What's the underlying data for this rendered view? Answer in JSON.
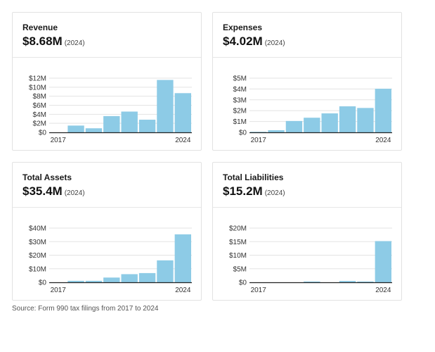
{
  "cards": [
    {
      "title": "Revenue",
      "value": "$8.68M",
      "year": "(2024)"
    },
    {
      "title": "Expenses",
      "value": "$4.02M",
      "year": "(2024)"
    },
    {
      "title": "Total Assets",
      "value": "$35.4M",
      "year": "(2024)"
    },
    {
      "title": "Total Liabilities",
      "value": "$15.2M",
      "year": "(2024)"
    }
  ],
  "source": "Source: Form 990 tax filings from 2017 to 2024",
  "bar_color": "#8dcbe6",
  "chart_data": [
    {
      "type": "bar",
      "title": "Revenue",
      "x": [
        2017,
        2018,
        2019,
        2020,
        2021,
        2022,
        2023,
        2024
      ],
      "values": [
        0,
        1.5,
        0.9,
        3.6,
        4.6,
        2.8,
        11.6,
        8.68
      ],
      "ylim": [
        0,
        12
      ],
      "yticks": [
        0,
        2,
        4,
        6,
        8,
        10,
        12
      ],
      "ytick_labels": [
        "$0",
        "$2M",
        "$4M",
        "$6M",
        "$8M",
        "$10M",
        "$12M"
      ],
      "xtick_labels": {
        "2017": "2017",
        "2024": "2024"
      }
    },
    {
      "type": "bar",
      "title": "Expenses",
      "x": [
        2017,
        2018,
        2019,
        2020,
        2021,
        2022,
        2023,
        2024
      ],
      "values": [
        0.05,
        0.2,
        1.05,
        1.35,
        1.75,
        2.4,
        2.25,
        4.02
      ],
      "ylim": [
        0,
        5
      ],
      "yticks": [
        0,
        1,
        2,
        3,
        4,
        5
      ],
      "ytick_labels": [
        "$0",
        "$1M",
        "$2M",
        "$3M",
        "$4M",
        "$5M"
      ],
      "xtick_labels": {
        "2017": "2017",
        "2024": "2024"
      }
    },
    {
      "type": "bar",
      "title": "Total Assets",
      "x": [
        2017,
        2018,
        2019,
        2020,
        2021,
        2022,
        2023,
        2024
      ],
      "values": [
        0,
        1.1,
        1.1,
        3.5,
        6.0,
        6.8,
        16.2,
        35.4
      ],
      "ylim": [
        0,
        40
      ],
      "yticks": [
        0,
        10,
        20,
        30,
        40
      ],
      "ytick_labels": [
        "$0",
        "$10M",
        "$20M",
        "$30M",
        "$40M"
      ],
      "xtick_labels": {
        "2017": "2017",
        "2024": "2024"
      }
    },
    {
      "type": "bar",
      "title": "Total Liabilities",
      "x": [
        2017,
        2018,
        2019,
        2020,
        2021,
        2022,
        2023,
        2024
      ],
      "values": [
        0,
        0,
        0,
        0.3,
        0,
        0.5,
        0.3,
        15.2
      ],
      "ylim": [
        0,
        20
      ],
      "yticks": [
        0,
        5,
        10,
        15,
        20
      ],
      "ytick_labels": [
        "$0",
        "$5M",
        "$10M",
        "$15M",
        "$20M"
      ],
      "xtick_labels": {
        "2017": "2017",
        "2024": "2024"
      }
    }
  ]
}
